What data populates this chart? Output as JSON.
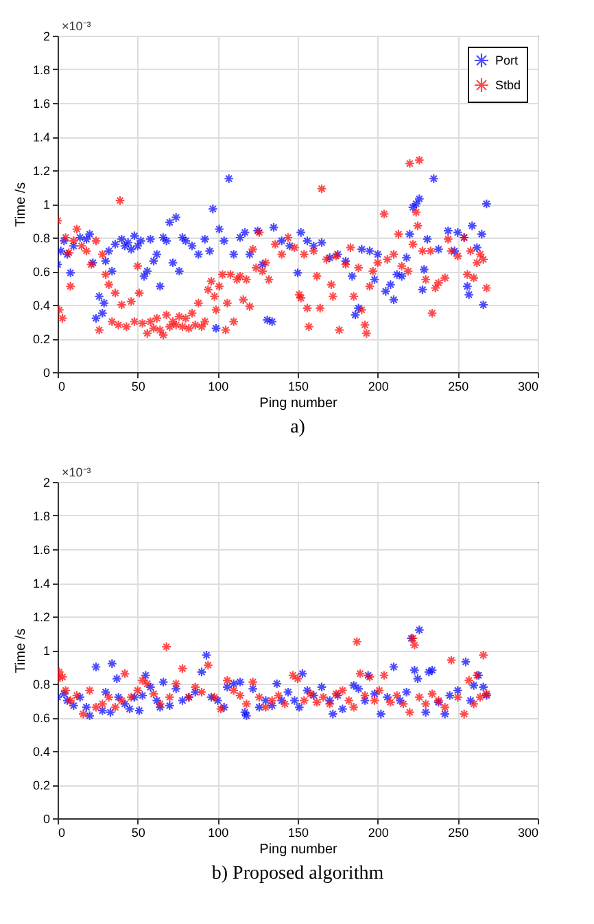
{
  "chart_data": [
    {
      "type": "scatter",
      "title": "a)",
      "xlabel": "Ping number",
      "ylabel": "Time /s",
      "annotations": [
        "×10⁻³"
      ],
      "xlim": [
        0,
        300
      ],
      "xticks": [
        0,
        50,
        100,
        150,
        200,
        250,
        300
      ],
      "ylim": [
        0,
        2
      ],
      "yticks": [
        0,
        0.2,
        0.4,
        0.6,
        0.8,
        1,
        1.2,
        1.4,
        1.6,
        1.8,
        2
      ],
      "grid": true,
      "legend": "top right",
      "marker": "cross",
      "series": [
        {
          "name": "Port",
          "color": "#0000ff",
          "x": [
            0,
            2,
            4,
            6,
            8,
            10,
            14,
            18,
            20,
            22,
            24,
            26,
            28,
            29,
            30,
            32,
            34,
            36,
            40,
            42,
            44,
            46,
            48,
            50,
            52,
            54,
            56,
            58,
            60,
            62,
            64,
            66,
            68,
            70,
            72,
            74,
            76,
            78,
            80,
            84,
            88,
            92,
            95,
            97,
            99,
            101,
            104,
            107,
            110,
            114,
            117,
            120,
            125,
            128,
            131,
            134,
            135,
            140,
            145,
            150,
            152,
            156,
            160,
            165,
            170,
            175,
            180,
            184,
            186,
            188,
            190,
            195,
            198,
            200,
            205,
            208,
            210,
            212,
            215,
            218,
            220,
            222,
            224,
            226,
            228,
            229,
            231,
            235,
            238,
            244,
            248,
            250,
            254,
            256,
            257,
            259,
            262,
            265,
            266,
            268
          ],
          "values": [
            0.64,
            0.72,
            0.78,
            0.7,
            0.59,
            0.75,
            0.8,
            0.79,
            0.82,
            0.65,
            0.32,
            0.45,
            0.35,
            0.41,
            0.66,
            0.72,
            0.6,
            0.76,
            0.79,
            0.75,
            0.77,
            0.73,
            0.81,
            0.75,
            0.78,
            0.57,
            0.6,
            0.79,
            0.66,
            0.7,
            0.51,
            0.8,
            0.78,
            0.89,
            0.65,
            0.92,
            0.6,
            0.8,
            0.78,
            0.75,
            0.7,
            0.79,
            0.72,
            0.97,
            0.26,
            0.85,
            0.78,
            1.15,
            0.7,
            0.8,
            0.83,
            0.7,
            0.84,
            0.64,
            0.31,
            0.3,
            0.86,
            0.78,
            0.75,
            0.59,
            0.83,
            0.78,
            0.75,
            0.77,
            0.68,
            0.7,
            0.66,
            0.57,
            0.34,
            0.38,
            0.73,
            0.72,
            0.55,
            0.7,
            0.48,
            0.52,
            0.43,
            0.58,
            0.57,
            0.68,
            0.82,
            0.98,
            1.0,
            1.03,
            0.49,
            0.61,
            0.79,
            1.15,
            0.73,
            0.84,
            0.72,
            0.83,
            0.8,
            0.51,
            0.46,
            0.87,
            0.74,
            0.82,
            0.4,
            1.0
          ]
        },
        {
          "name": "Stbd",
          "color": "#ff0000",
          "x": [
            0,
            1,
            3,
            5,
            7,
            8,
            10,
            12,
            15,
            18,
            21,
            24,
            26,
            28,
            30,
            32,
            34,
            36,
            38,
            39,
            40,
            43,
            46,
            48,
            50,
            51,
            53,
            56,
            58,
            60,
            62,
            64,
            66,
            68,
            70,
            72,
            74,
            76,
            78,
            80,
            82,
            84,
            86,
            88,
            90,
            92,
            94,
            96,
            98,
            99,
            101,
            103,
            105,
            106,
            108,
            110,
            112,
            114,
            116,
            118,
            120,
            122,
            124,
            126,
            128,
            130,
            132,
            136,
            140,
            144,
            148,
            151,
            152,
            154,
            156,
            157,
            160,
            162,
            164,
            165,
            168,
            171,
            172,
            174,
            176,
            180,
            183,
            185,
            188,
            190,
            192,
            193,
            195,
            197,
            200,
            204,
            206,
            210,
            213,
            215,
            219,
            220,
            222,
            224,
            225,
            226,
            228,
            230,
            233,
            234,
            236,
            238,
            242,
            244,
            246,
            250,
            254,
            256,
            258,
            260,
            262,
            264,
            266,
            268
          ],
          "values": [
            0.9,
            0.37,
            0.32,
            0.8,
            0.71,
            0.51,
            0.78,
            0.85,
            0.75,
            0.72,
            0.64,
            0.78,
            0.25,
            0.7,
            0.58,
            0.52,
            0.3,
            0.47,
            0.28,
            1.02,
            0.4,
            0.27,
            0.42,
            0.3,
            0.63,
            0.47,
            0.29,
            0.23,
            0.3,
            0.26,
            0.32,
            0.25,
            0.22,
            0.34,
            0.27,
            0.3,
            0.28,
            0.33,
            0.27,
            0.32,
            0.26,
            0.35,
            0.28,
            0.41,
            0.27,
            0.3,
            0.49,
            0.54,
            0.45,
            0.37,
            0.51,
            0.58,
            0.25,
            0.41,
            0.58,
            0.3,
            0.55,
            0.57,
            0.43,
            0.55,
            0.39,
            0.73,
            0.62,
            0.83,
            0.6,
            0.65,
            0.55,
            0.76,
            0.7,
            0.8,
            0.74,
            0.46,
            0.44,
            0.7,
            0.38,
            0.27,
            0.72,
            0.57,
            0.38,
            1.09,
            0.67,
            0.52,
            0.45,
            0.69,
            0.25,
            0.64,
            0.74,
            0.45,
            0.62,
            0.37,
            0.28,
            0.23,
            0.51,
            0.6,
            0.65,
            0.94,
            0.67,
            0.7,
            0.82,
            0.63,
            0.6,
            1.24,
            0.76,
            0.95,
            0.87,
            1.26,
            0.72,
            0.55,
            0.72,
            0.35,
            0.5,
            0.53,
            0.56,
            0.79,
            0.72,
            0.69,
            0.8,
            0.58,
            0.72,
            0.56,
            0.65,
            0.7,
            0.67,
            0.5
          ]
        }
      ]
    },
    {
      "type": "scatter",
      "title": "b) Proposed algorithm",
      "xlabel": "Ping number",
      "ylabel": "Time /s",
      "annotations": [
        "×10⁻³"
      ],
      "xlim": [
        0,
        300
      ],
      "xticks": [
        0,
        50,
        100,
        150,
        200,
        250,
        300
      ],
      "ylim": [
        0,
        2
      ],
      "yticks": [
        0,
        0.2,
        0.4,
        0.6,
        0.8,
        1,
        1.2,
        1.4,
        1.6,
        1.8,
        2
      ],
      "grid": true,
      "legend": "top right",
      "marker": "cross",
      "series": [
        {
          "name": "Port",
          "color": "#0000ff",
          "x": [
            0,
            4,
            6,
            10,
            14,
            18,
            20,
            24,
            28,
            30,
            33,
            34,
            37,
            38,
            42,
            45,
            48,
            51,
            53,
            55,
            58,
            62,
            64,
            66,
            70,
            74,
            78,
            82,
            86,
            90,
            93,
            96,
            100,
            104,
            106,
            110,
            114,
            117,
            118,
            122,
            126,
            130,
            134,
            137,
            140,
            144,
            148,
            151,
            153,
            156,
            160,
            165,
            170,
            172,
            175,
            178,
            185,
            188,
            192,
            194,
            198,
            202,
            206,
            210,
            214,
            218,
            221,
            223,
            225,
            226,
            230,
            232,
            234,
            238,
            242,
            245,
            250,
            255,
            258,
            260,
            263,
            266,
            268
          ],
          "values": [
            0.72,
            0.74,
            0.7,
            0.67,
            0.72,
            0.66,
            0.61,
            0.9,
            0.64,
            0.75,
            0.63,
            0.92,
            0.83,
            0.72,
            0.68,
            0.65,
            0.72,
            0.64,
            0.73,
            0.85,
            0.78,
            0.7,
            0.66,
            0.81,
            0.67,
            0.77,
            0.7,
            0.72,
            0.75,
            0.87,
            0.97,
            0.72,
            0.7,
            0.66,
            0.78,
            0.8,
            0.81,
            0.63,
            0.61,
            0.77,
            0.66,
            0.7,
            0.67,
            0.8,
            0.7,
            0.75,
            0.7,
            0.66,
            0.86,
            0.76,
            0.73,
            0.78,
            0.7,
            0.62,
            0.73,
            0.65,
            0.79,
            0.77,
            0.7,
            0.85,
            0.74,
            0.62,
            0.72,
            0.9,
            0.7,
            0.75,
            1.07,
            0.88,
            0.83,
            1.12,
            0.63,
            0.87,
            0.88,
            0.69,
            0.62,
            0.73,
            0.76,
            0.93,
            0.7,
            0.79,
            0.85,
            0.78,
            0.73
          ]
        },
        {
          "name": "Stbd",
          "color": "#ff0000",
          "x": [
            0,
            1,
            3,
            5,
            8,
            12,
            16,
            20,
            24,
            28,
            32,
            36,
            40,
            42,
            46,
            50,
            53,
            56,
            60,
            64,
            68,
            70,
            74,
            78,
            82,
            86,
            90,
            94,
            98,
            102,
            106,
            110,
            114,
            118,
            122,
            126,
            130,
            134,
            138,
            142,
            147,
            150,
            154,
            158,
            162,
            166,
            170,
            174,
            178,
            182,
            185,
            187,
            189,
            192,
            195,
            198,
            201,
            204,
            208,
            212,
            216,
            220,
            222,
            223,
            226,
            230,
            234,
            238,
            242,
            246,
            250,
            254,
            257,
            260,
            262,
            264,
            266,
            268
          ],
          "values": [
            0.83,
            0.87,
            0.84,
            0.76,
            0.7,
            0.73,
            0.62,
            0.76,
            0.66,
            0.68,
            0.72,
            0.66,
            0.7,
            0.86,
            0.72,
            0.76,
            0.82,
            0.8,
            0.74,
            0.68,
            1.02,
            0.72,
            0.8,
            0.89,
            0.72,
            0.78,
            0.75,
            0.91,
            0.72,
            0.65,
            0.82,
            0.76,
            0.73,
            0.68,
            0.81,
            0.72,
            0.66,
            0.7,
            0.73,
            0.68,
            0.85,
            0.83,
            0.7,
            0.74,
            0.69,
            0.72,
            0.68,
            0.74,
            0.76,
            0.7,
            0.66,
            1.05,
            0.86,
            0.73,
            0.84,
            0.7,
            0.76,
            0.85,
            0.69,
            0.73,
            0.68,
            0.63,
            1.07,
            1.03,
            0.72,
            0.68,
            0.74,
            0.7,
            0.66,
            0.94,
            0.72,
            0.62,
            0.82,
            0.68,
            0.85,
            0.72,
            0.97,
            0.74
          ]
        }
      ]
    }
  ]
}
